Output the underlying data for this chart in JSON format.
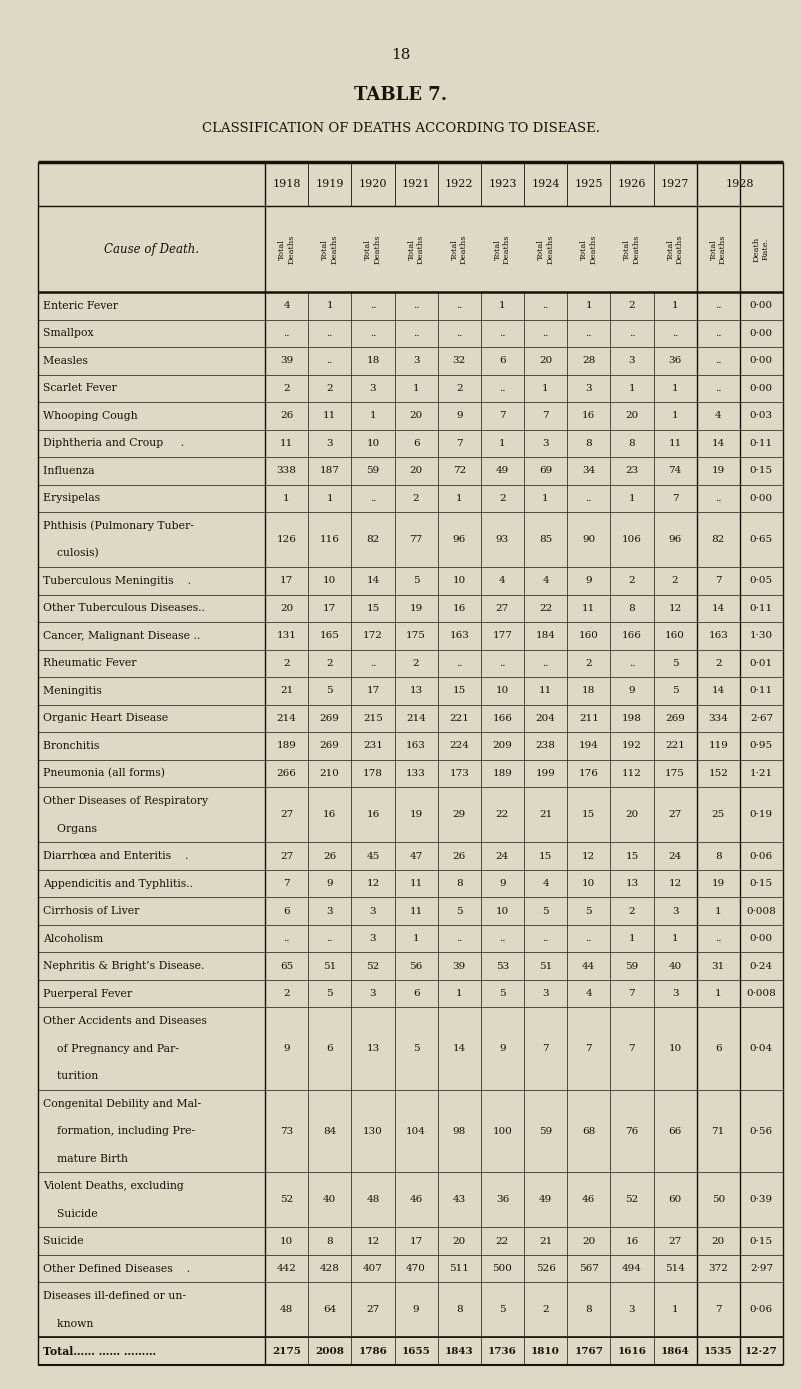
{
  "page_number": "18",
  "table_title": "TABLE 7.",
  "subtitle": "CLASSIFICATION OF DEATHS ACCORDING TO DISEASE.",
  "bg_color": "#ddd9c4",
  "text_color": "#1a1008",
  "years": [
    "1918",
    "1919",
    "1920",
    "1921",
    "1922",
    "1923",
    "1924",
    "1925",
    "1926",
    "1927",
    "1928"
  ],
  "rows": [
    {
      "cause": "Enteric Fever             ",
      "data": [
        "4",
        "1",
        "..",
        "..",
        "..",
        "1",
        "..",
        "1",
        "2",
        "1",
        ".."
      ],
      "rate": "0·00",
      "multiline": false
    },
    {
      "cause": "Smallpox               ",
      "data": [
        "..",
        "..",
        "..",
        "..",
        "..",
        "..",
        "..",
        "..",
        "..",
        "..",
        ".."
      ],
      "rate": "0·00",
      "multiline": false
    },
    {
      "cause": "Measles                ",
      "data": [
        "39",
        "..",
        "18",
        "3",
        "32",
        "6",
        "20",
        "28",
        "3",
        "36",
        ".."
      ],
      "rate": "0·00",
      "multiline": false
    },
    {
      "cause": "Scarlet Fever             ",
      "data": [
        "2",
        "2",
        "3",
        "1",
        "2",
        "..",
        "1",
        "3",
        "1",
        "1",
        ".."
      ],
      "rate": "0·00",
      "multiline": false
    },
    {
      "cause": "Whooping Cough          ",
      "data": [
        "26",
        "11",
        "1",
        "20",
        "9",
        "7",
        "7",
        "16",
        "20",
        "1",
        "4"
      ],
      "rate": "0·03",
      "multiline": false
    },
    {
      "cause": "Diphtheria and Croup     .",
      "data": [
        "11",
        "3",
        "10",
        "6",
        "7",
        "1",
        "3",
        "8",
        "8",
        "11",
        "14"
      ],
      "rate": "0·11",
      "multiline": false
    },
    {
      "cause": "Influenza               ",
      "data": [
        "338",
        "187",
        "59",
        "20",
        "72",
        "49",
        "69",
        "34",
        "23",
        "74",
        "19"
      ],
      "rate": "0·15",
      "multiline": false
    },
    {
      "cause": "Erysipelas              ",
      "data": [
        "1",
        "1",
        "..",
        "2",
        "1",
        "2",
        "1",
        "..",
        "1",
        "7",
        ".."
      ],
      "rate": "0·00",
      "multiline": false
    },
    {
      "cause": "Phthisis (Pulmonary Tuber-",
      "cause2": "    culosis)             ",
      "data": [
        "126",
        "116",
        "82",
        "77",
        "96",
        "93",
        "85",
        "90",
        "106",
        "96",
        "82"
      ],
      "rate": "0·65",
      "multiline": true
    },
    {
      "cause": "Tuberculous Meningitis    .",
      "data": [
        "17",
        "10",
        "14",
        "5",
        "10",
        "4",
        "4",
        "9",
        "2",
        "2",
        "7"
      ],
      "rate": "0·05",
      "multiline": false
    },
    {
      "cause": "Other Tuberculous Diseases..",
      "data": [
        "20",
        "17",
        "15",
        "19",
        "16",
        "27",
        "22",
        "11",
        "8",
        "12",
        "14"
      ],
      "rate": "0·11",
      "multiline": false
    },
    {
      "cause": "Cancer, Malignant Disease ..",
      "data": [
        "131",
        "165",
        "172",
        "175",
        "163",
        "177",
        "184",
        "160",
        "166",
        "160",
        "163"
      ],
      "rate": "1·30",
      "multiline": false
    },
    {
      "cause": "Rheumatic Fever          ",
      "data": [
        "2",
        "2",
        "..",
        "2",
        "..",
        "..",
        "..",
        "2",
        "..",
        "5",
        "2"
      ],
      "rate": "0·01",
      "multiline": false
    },
    {
      "cause": "Meningitis              ",
      "data": [
        "21",
        "5",
        "17",
        "13",
        "15",
        "10",
        "11",
        "18",
        "9",
        "5",
        "14"
      ],
      "rate": "0·11",
      "multiline": false
    },
    {
      "cause": "Organic Heart Disease      ",
      "data": [
        "214",
        "269",
        "215",
        "214",
        "221",
        "166",
        "204",
        "211",
        "198",
        "269",
        "334"
      ],
      "rate": "2·67",
      "multiline": false
    },
    {
      "cause": "Bronchitis              ",
      "data": [
        "189",
        "269",
        "231",
        "163",
        "224",
        "209",
        "238",
        "194",
        "192",
        "221",
        "119"
      ],
      "rate": "0·95",
      "multiline": false
    },
    {
      "cause": "Pneumonia (all forms)      ",
      "data": [
        "266",
        "210",
        "178",
        "133",
        "173",
        "189",
        "199",
        "176",
        "112",
        "175",
        "152"
      ],
      "rate": "1·21",
      "multiline": false
    },
    {
      "cause": "Other Diseases of Respiratory",
      "cause2": "    Organs             ",
      "data": [
        "27",
        "16",
        "16",
        "19",
        "29",
        "22",
        "21",
        "15",
        "20",
        "27",
        "25"
      ],
      "rate": "0·19",
      "multiline": true
    },
    {
      "cause": "Diarrhœa and Enteritis    .",
      "data": [
        "27",
        "26",
        "45",
        "47",
        "26",
        "24",
        "15",
        "12",
        "15",
        "24",
        "8"
      ],
      "rate": "0·06",
      "multiline": false
    },
    {
      "cause": "Appendicitis and Typhlitis..",
      "data": [
        "7",
        "9",
        "12",
        "11",
        "8",
        "9",
        "4",
        "10",
        "13",
        "12",
        "19"
      ],
      "rate": "0·15",
      "multiline": false
    },
    {
      "cause": "Cirrhosis of Liver         ",
      "data": [
        "6",
        "3",
        "3",
        "11",
        "5",
        "10",
        "5",
        "5",
        "2",
        "3",
        "1"
      ],
      "rate": "0·008",
      "multiline": false
    },
    {
      "cause": "Alcoholism              ",
      "data": [
        "..",
        "..",
        "3",
        "1",
        "..",
        "..",
        "..",
        "..",
        "1",
        "1",
        ".."
      ],
      "rate": "0·00",
      "multiline": false
    },
    {
      "cause": "Nephritis & Bright’s Disease.",
      "data": [
        "65",
        "51",
        "52",
        "56",
        "39",
        "53",
        "51",
        "44",
        "59",
        "40",
        "31"
      ],
      "rate": "0·24",
      "multiline": false
    },
    {
      "cause": "Puerperal Fever          ",
      "data": [
        "2",
        "5",
        "3",
        "6",
        "1",
        "5",
        "3",
        "4",
        "7",
        "3",
        "1"
      ],
      "rate": "0·008",
      "multiline": false
    },
    {
      "cause": "Other Accidents and Diseases",
      "cause2": "    of Pregnancy and Par-",
      "cause3": "    turition           ",
      "data": [
        "9",
        "6",
        "13",
        "5",
        "14",
        "9",
        "7",
        "7",
        "7",
        "10",
        "6"
      ],
      "rate": "0·04",
      "multiline": true,
      "lines": 3
    },
    {
      "cause": "Congenital Debility and Mal-",
      "cause2": "    formation, including Pre-",
      "cause3": "    mature Birth         ",
      "data": [
        "73",
        "84",
        "130",
        "104",
        "98",
        "100",
        "59",
        "68",
        "76",
        "66",
        "71"
      ],
      "rate": "0·56",
      "multiline": true,
      "lines": 3
    },
    {
      "cause": "Violent Deaths, excluding",
      "cause2": "    Suicide            ",
      "data": [
        "52",
        "40",
        "48",
        "46",
        "43",
        "36",
        "49",
        "46",
        "52",
        "60",
        "50"
      ],
      "rate": "0·39",
      "multiline": true
    },
    {
      "cause": "Suicide                 ",
      "data": [
        "10",
        "8",
        "12",
        "17",
        "20",
        "22",
        "21",
        "20",
        "16",
        "27",
        "20"
      ],
      "rate": "0·15",
      "multiline": false
    },
    {
      "cause": "Other Defined Diseases    .",
      "data": [
        "442",
        "428",
        "407",
        "470",
        "511",
        "500",
        "526",
        "567",
        "494",
        "514",
        "372"
      ],
      "rate": "2·97",
      "multiline": false
    },
    {
      "cause": "Diseases ill-defined or un-",
      "cause2": "    known             ",
      "data": [
        "48",
        "64",
        "27",
        "9",
        "8",
        "5",
        "2",
        "8",
        "3",
        "1",
        "7"
      ],
      "rate": "0·06",
      "multiline": true
    },
    {
      "cause": "Total…… …… ………",
      "data": [
        "2175",
        "2008",
        "1786",
        "1655",
        "1843",
        "1736",
        "1810",
        "1767",
        "1616",
        "1864",
        "1535"
      ],
      "rate": "12·27",
      "multiline": false,
      "is_total": true
    }
  ]
}
